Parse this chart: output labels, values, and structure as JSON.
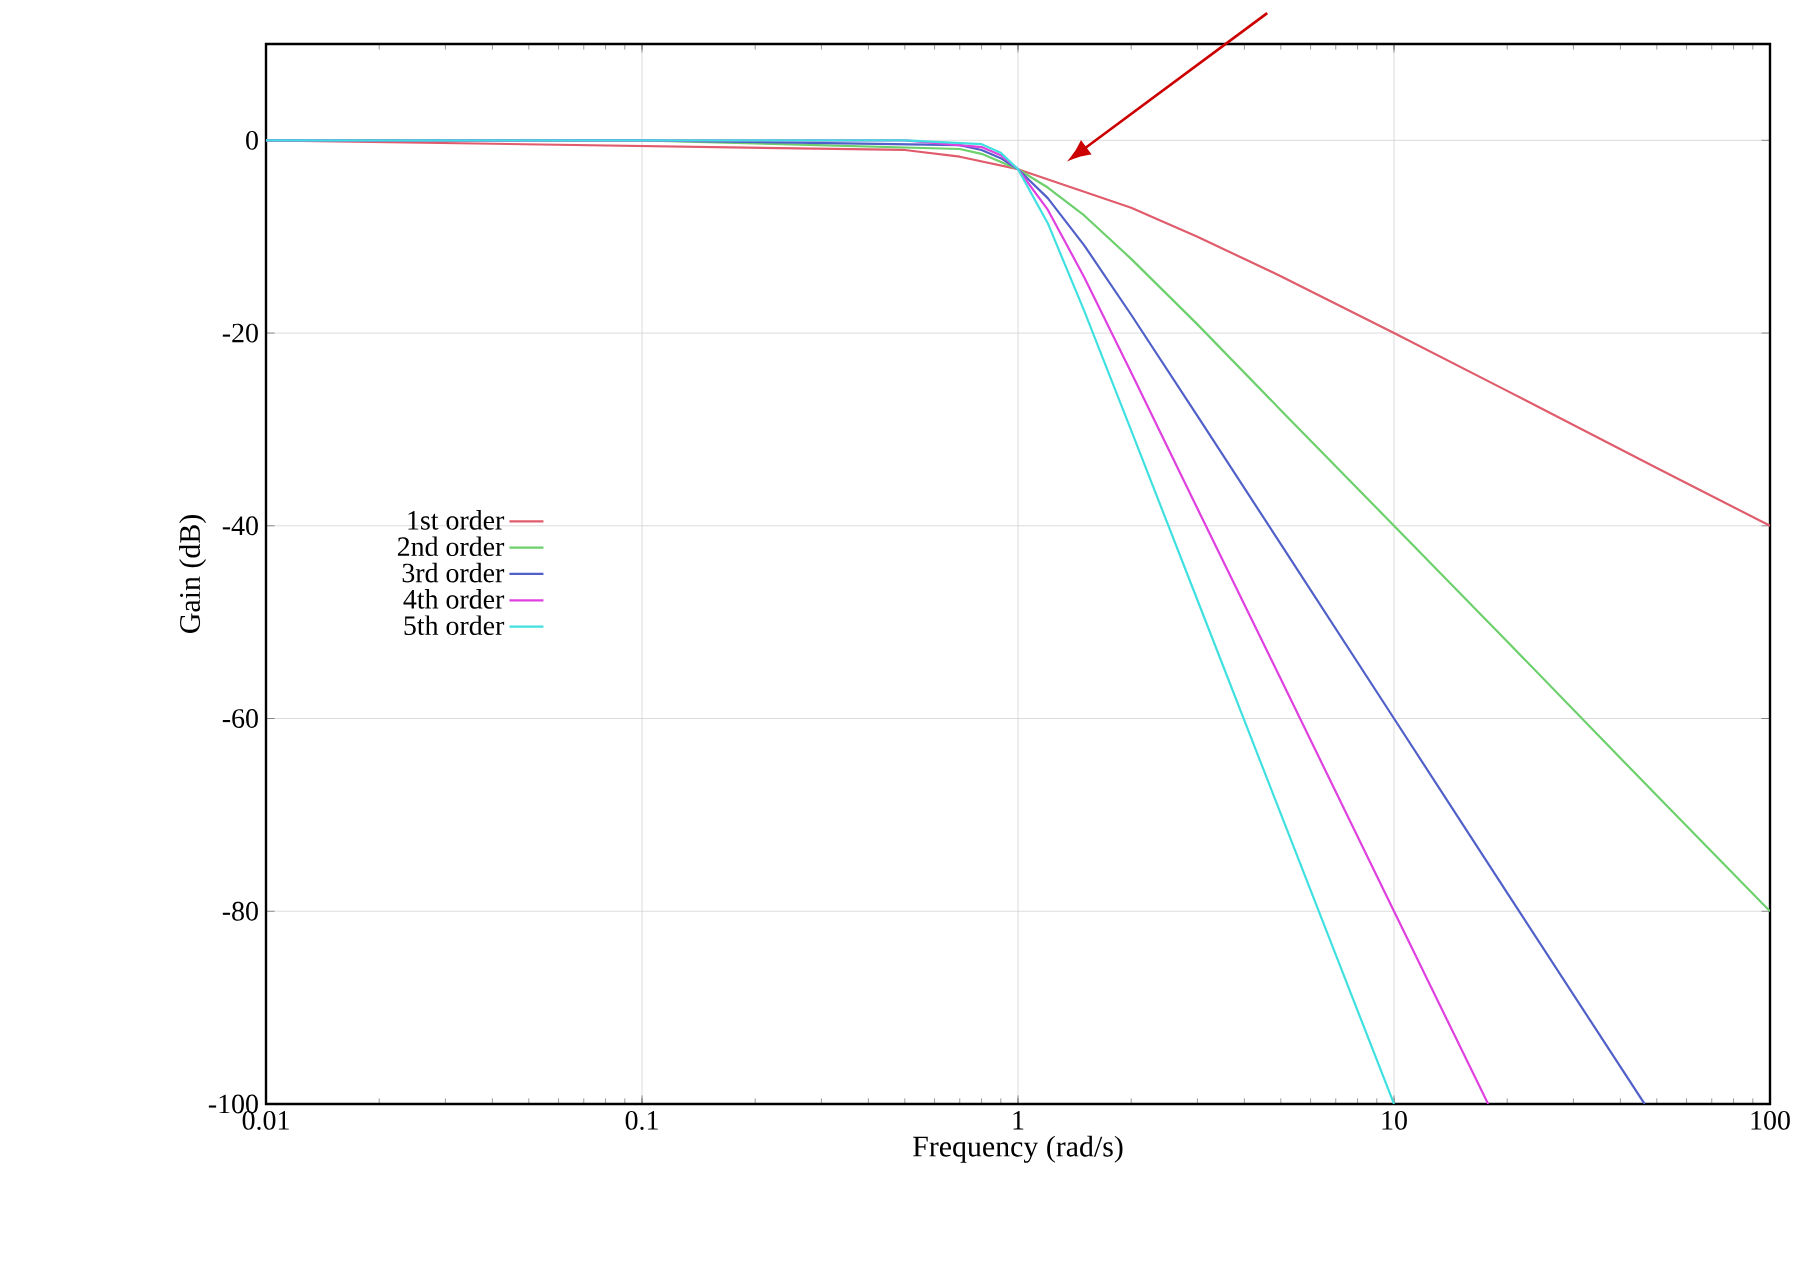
{
  "chart_data": {
    "type": "line",
    "xlabel": "Frequency (rad/s)",
    "ylabel": "Gain (dB)",
    "log": "x",
    "xlim": [
      0.01,
      100
    ],
    "ylim": [
      -100,
      10
    ],
    "xticks": [
      0.01,
      0.1,
      1,
      10,
      100
    ],
    "yticks": [
      -100,
      -80,
      -60,
      -40,
      -20,
      0
    ],
    "grid": true,
    "legend": "left",
    "series": [
      {
        "name": "1st order",
        "color": "#e05c6c",
        "x": [
          0.01,
          0.5,
          0.7,
          1,
          2,
          3,
          5,
          10,
          20,
          50,
          100
        ],
        "values": [
          0,
          -1.0,
          -1.7,
          -3.0,
          -7.0,
          -10.0,
          -14.1,
          -20.0,
          -26.0,
          -34.0,
          -40.0
        ]
      },
      {
        "name": "2nd order",
        "color": "#6cd06c",
        "x": [
          0.01,
          0.1,
          0.7,
          0.8,
          1,
          1.2,
          1.5,
          2,
          3,
          5,
          10,
          20,
          50,
          100
        ],
        "values": [
          0,
          0,
          -0.9,
          -1.4,
          -3.0,
          -4.9,
          -7.8,
          -12.3,
          -19.1,
          -28.0,
          -40.0,
          -52.0,
          -68.0,
          -80.0
        ]
      },
      {
        "name": "3rd order",
        "color": "#5060c8",
        "x": [
          0.01,
          0.1,
          0.7,
          0.8,
          0.9,
          1,
          1.2,
          1.5,
          2,
          3,
          5,
          10,
          20,
          46.4
        ],
        "values": [
          0,
          0,
          -0.5,
          -1.0,
          -1.85,
          -3.0,
          -6.0,
          -10.9,
          -18.1,
          -28.6,
          -41.9,
          -60.0,
          -78.1,
          -100
        ]
      },
      {
        "name": "4th order",
        "color": "#e040e0",
        "x": [
          0.01,
          0.1,
          0.5,
          0.8,
          0.9,
          1,
          1.2,
          1.5,
          2,
          3,
          5,
          10,
          17.8
        ],
        "values": [
          0,
          0,
          0,
          -0.7,
          -1.55,
          -3.0,
          -7.2,
          -14.2,
          -24.1,
          -38.2,
          -55.9,
          -80.0,
          -100
        ]
      },
      {
        "name": "5th order",
        "color": "#40e0e0",
        "x": [
          0.01,
          0.1,
          0.5,
          0.8,
          0.9,
          1,
          1.2,
          1.5,
          2,
          3,
          5,
          10
        ],
        "values": [
          0,
          0,
          0,
          -0.4,
          -1.3,
          -3.0,
          -8.6,
          -17.7,
          -30.1,
          -47.7,
          -69.9,
          -100
        ]
      }
    ]
  }
}
